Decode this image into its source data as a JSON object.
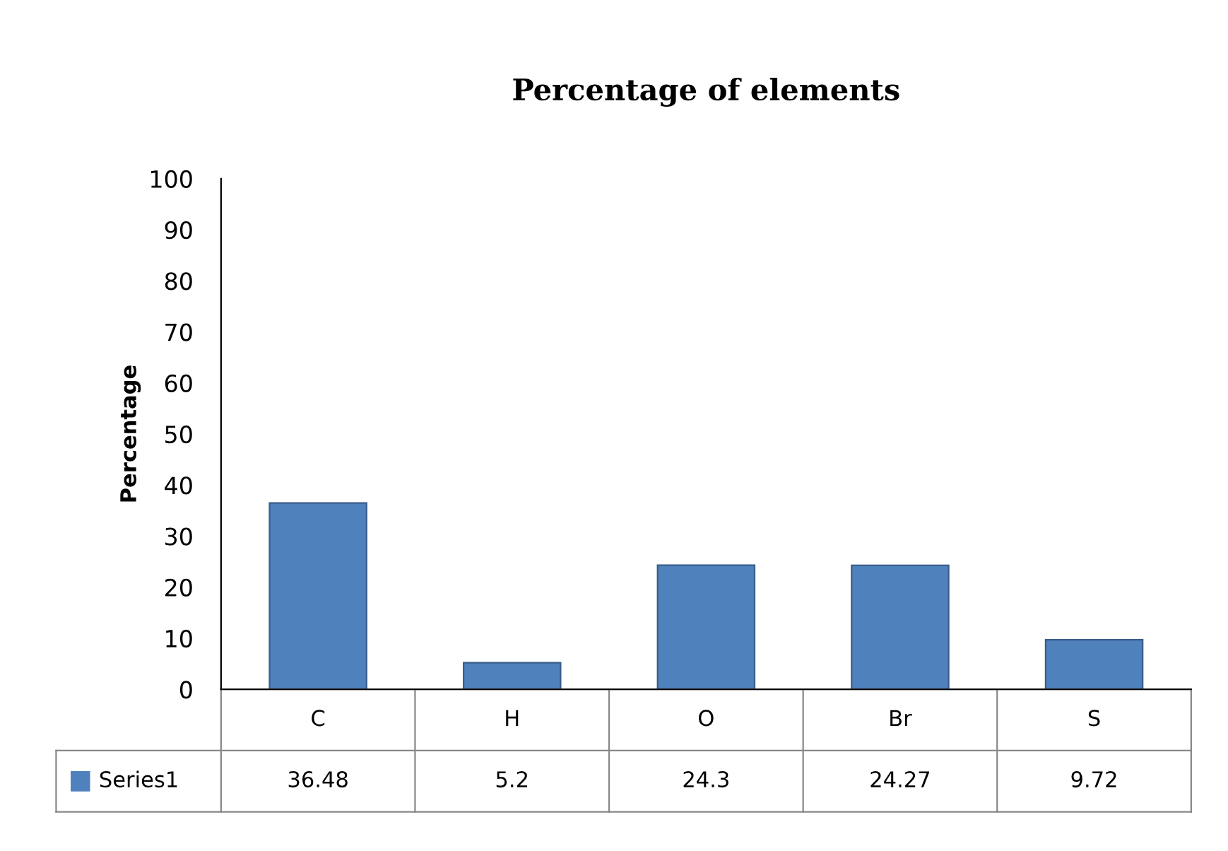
{
  "chart_data": {
    "type": "bar",
    "title": "Percentage of elements",
    "ylabel": "Percentage",
    "categories": [
      "C",
      "H",
      "O",
      "Br",
      "S"
    ],
    "series": [
      {
        "name": "Series1",
        "color": "#4f81bd",
        "values": [
          36.48,
          5.2,
          24.3,
          24.27,
          9.72
        ]
      }
    ],
    "ylim": [
      0,
      100
    ],
    "yticks": [
      0,
      10,
      20,
      30,
      40,
      50,
      60,
      70,
      80,
      90,
      100
    ],
    "grid": false,
    "legend": "bottom",
    "data_labels": true
  }
}
